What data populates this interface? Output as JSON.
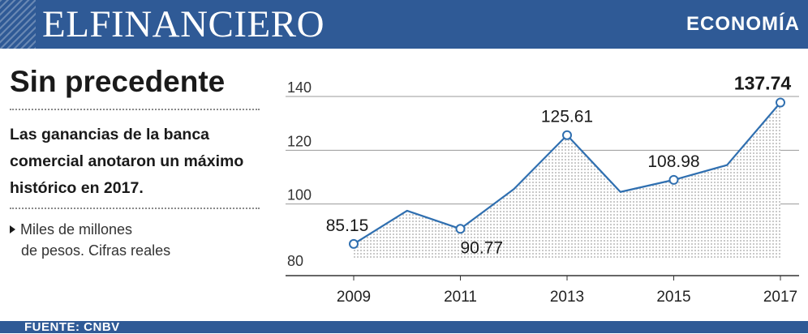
{
  "header": {
    "brand": "ELFINANCIERO",
    "section": "ECONOMÍA"
  },
  "headline": "Sin precedente",
  "dek": "Las ganancias de la banca comercial anotaron un máximo histórico en 2017.",
  "unit": {
    "line1": "Miles de millones",
    "line2": "de pesos. Cifras reales"
  },
  "footer": {
    "source": "FUENTE: CNBV"
  },
  "colors": {
    "brand_blue": "#2f5a96",
    "line": "#2f6fb0"
  },
  "chart_data": {
    "type": "area",
    "title": "Sin precedente",
    "x": [
      2009,
      2010,
      2011,
      2012,
      2013,
      2014,
      2015,
      2016,
      2017
    ],
    "values": [
      85.15,
      97.5,
      90.77,
      105.5,
      125.61,
      104.5,
      108.98,
      114.5,
      137.74
    ],
    "labeled_points": [
      {
        "x": 2009,
        "label": "85.15"
      },
      {
        "x": 2011,
        "label": "90.77"
      },
      {
        "x": 2013,
        "label": "125.61"
      },
      {
        "x": 2015,
        "label": "108.98"
      },
      {
        "x": 2017,
        "label": "137.74"
      }
    ],
    "x_ticks": [
      "2009",
      "2011",
      "2013",
      "2015",
      "2017"
    ],
    "y_ticks": [
      "80",
      "100",
      "120",
      "140"
    ],
    "ylim": [
      80,
      140
    ],
    "xlabel": "",
    "ylabel": "",
    "grid": true
  }
}
